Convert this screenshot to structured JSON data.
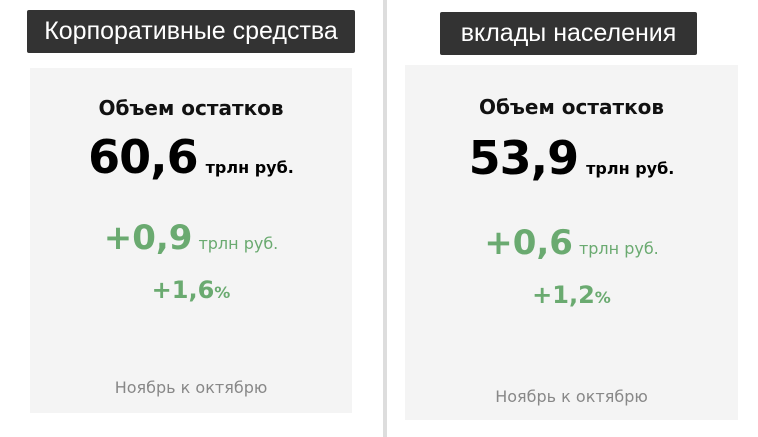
{
  "panels": [
    {
      "tag": "Корпоративные средства",
      "title": "Объем остатков",
      "value": "60,6",
      "unit": "трлн руб.",
      "delta": "+0,9",
      "delta_unit": "трлн руб.",
      "pct": "+1,6",
      "pct_sym": "%",
      "footer": "Ноябрь к октябрю"
    },
    {
      "tag": "вклады населения",
      "title": "Объем остатков",
      "value": "53,9",
      "unit": "трлн руб.",
      "delta": "+0,6",
      "delta_unit": "трлн руб.",
      "pct": "+1,2",
      "pct_sym": "%",
      "footer": "Ноябрь к октябрю"
    }
  ],
  "colors": {
    "tag_bg": "#333333",
    "positive": "#6aaa70",
    "card_bg": "#f4f4f4"
  }
}
